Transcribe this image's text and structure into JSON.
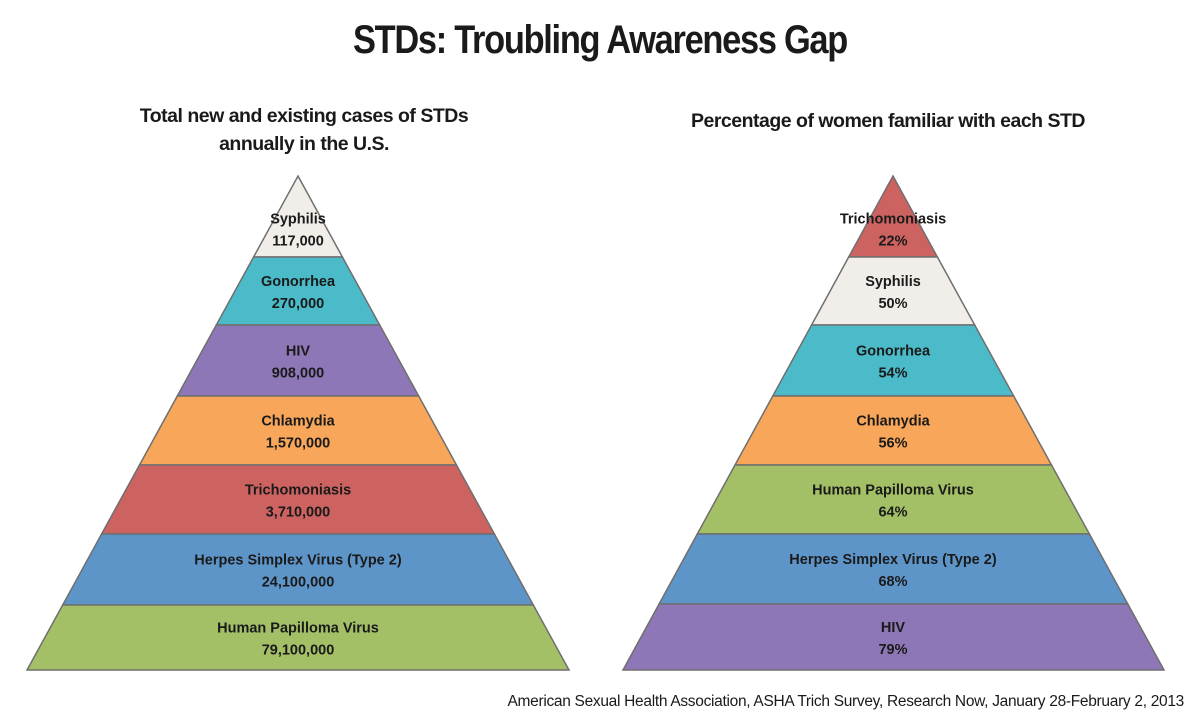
{
  "title": "STDs: Troubling Awareness Gap",
  "source": "American Sexual Health Association, ASHA Trich Survey, Research Now, January 28-February 2, 2013",
  "chart_data": [
    {
      "type": "pyramid",
      "title": "Total new and existing cases of STDs annually in the U.S.",
      "levels_top_to_bottom": [
        {
          "label": "Syphilis",
          "value": 117000,
          "display": "117,000",
          "color": "#f1eee9"
        },
        {
          "label": "Gonorrhea",
          "value": 270000,
          "display": "270,000",
          "color": "#4bbbc9"
        },
        {
          "label": "HIV",
          "value": 908000,
          "display": "908,000",
          "color": "#8e77b6"
        },
        {
          "label": "Chlamydia",
          "value": 1570000,
          "display": "1,570,000",
          "color": "#f8a65a"
        },
        {
          "label": "Trichomoniasis",
          "value": 3710000,
          "display": "3,710,000",
          "color": "#cc6360"
        },
        {
          "label": "Herpes Simplex Virus (Type 2)",
          "value": 24100000,
          "display": "24,100,000",
          "color": "#5e95c9"
        },
        {
          "label": "Human Papilloma Virus",
          "value": 79100000,
          "display": "79,100,000",
          "color": "#a3c067"
        }
      ]
    },
    {
      "type": "pyramid",
      "title": "Percentage of women familiar with each STD",
      "levels_top_to_bottom": [
        {
          "label": "Trichomoniasis",
          "value": 22,
          "display": "22%",
          "color": "#cc6360"
        },
        {
          "label": "Syphilis",
          "value": 50,
          "display": "50%",
          "color": "#f1eee9"
        },
        {
          "label": "Gonorrhea",
          "value": 54,
          "display": "54%",
          "color": "#4bbbc9"
        },
        {
          "label": "Chlamydia",
          "value": 56,
          "display": "56%",
          "color": "#f8a65a"
        },
        {
          "label": "Human Papilloma Virus",
          "value": 64,
          "display": "64%",
          "color": "#a3c067"
        },
        {
          "label": "Herpes Simplex Virus (Type 2)",
          "value": 68,
          "display": "68%",
          "color": "#5e95c9"
        },
        {
          "label": "HIV",
          "value": 79,
          "display": "79%",
          "color": "#8e77b6"
        }
      ]
    }
  ]
}
